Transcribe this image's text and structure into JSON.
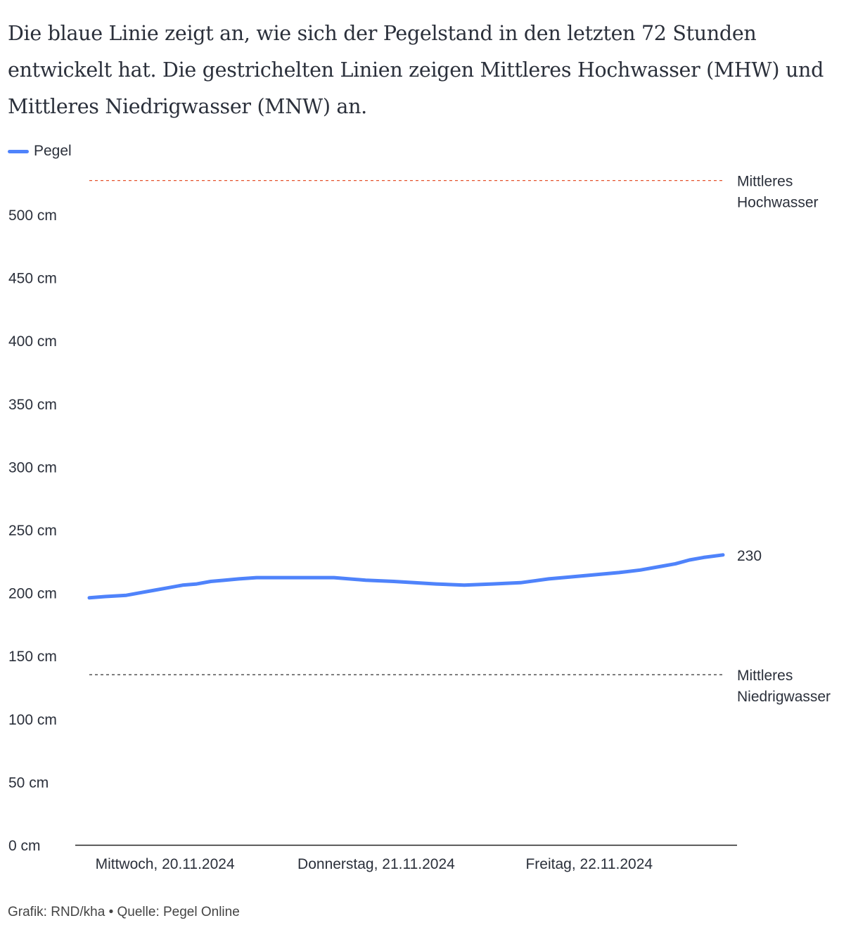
{
  "intro": "Die blaue Linie zeigt an, wie sich der Pegelstand in den letzten 72 Stunden entwickelt hat. Die gestrichelten Linien zeigen Mittleres Hochwasser (MHW) und Mittleres Niedrigwasser (MNW) an.",
  "footer": "Grafik: RND/kha • Quelle: Pegel Online",
  "colors": {
    "pegel": "#4f83fb",
    "mhw": "#e5532d",
    "mnw": "#444444",
    "axis": "#222222"
  },
  "chart_data": {
    "type": "line",
    "legend": [
      {
        "label": "Pegel"
      }
    ],
    "ylim": [
      0,
      560
    ],
    "yticks": [
      0,
      50,
      100,
      150,
      200,
      250,
      300,
      350,
      400,
      450,
      500
    ],
    "ytick_labels": [
      "0 cm",
      "50 cm",
      "100 cm",
      "150 cm",
      "200 cm",
      "250 cm",
      "300 cm",
      "350 cm",
      "400 cm",
      "450 cm",
      "500 cm"
    ],
    "xlim_hours": [
      0,
      72
    ],
    "xticks": [
      {
        "hour": 8.6,
        "label": "Mittwoch, 20.11.2024"
      },
      {
        "hour": 32.6,
        "label": "Donnerstag, 21.11.2024"
      },
      {
        "hour": 56.8,
        "label": "Freitag, 22.11.2024"
      }
    ],
    "series": [
      {
        "name": "Pegel",
        "unit": "cm",
        "x": [
          0,
          1.8,
          4.2,
          5.8,
          7.4,
          9.0,
          10.6,
          12.2,
          13.8,
          15.4,
          17.0,
          19.0,
          27.8,
          31.4,
          34.6,
          39.4,
          42.6,
          45.8,
          49.0,
          52.2,
          53.8,
          57.0,
          60.2,
          62.6,
          65.0,
          66.6,
          68.2,
          69.8,
          72
        ],
        "y": [
          196,
          197,
          198,
          200,
          202,
          204,
          206,
          207,
          209,
          210,
          211,
          212,
          212,
          210,
          209,
          207,
          206,
          207,
          208,
          211,
          212,
          214,
          216,
          218,
          221,
          223,
          226,
          228,
          230
        ]
      }
    ],
    "last_value_label": "230",
    "reference_lines": [
      {
        "name": "MHW",
        "value": 527,
        "label_lines": [
          "Mittleres",
          "Hochwasser"
        ]
      },
      {
        "name": "MNW",
        "value": 135,
        "label_lines": [
          "Mittleres",
          "Niedrigwasser"
        ]
      }
    ]
  }
}
